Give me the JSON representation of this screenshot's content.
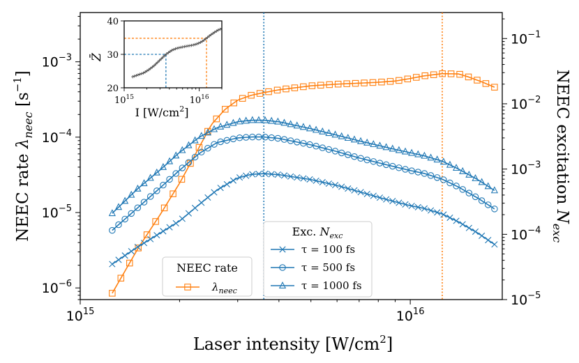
{
  "chart_data": {
    "type": "line",
    "xlabel": "Laser intensity [W/cm²]",
    "xlabel_base": "Laser intensity [W/cm",
    "xlabel_sup": "2",
    "xlabel_end": "]",
    "ylabel_left": "NEEC rate λneec [s⁻¹]",
    "ylabel_left_parts": {
      "pre": "NEEC rate ",
      "sym": "λ",
      "sub": "neec",
      "post": " [s",
      "sup": "−1",
      "end": "]"
    },
    "ylabel_right": "NEEC excitation Nexc",
    "ylabel_right_parts": {
      "pre": "NEEC excitation ",
      "sym": "N",
      "sub": "exc"
    },
    "x_scale": "log",
    "xlim": [
      1000000000000000.0,
      1.9e+16
    ],
    "xticks": [
      {
        "value": 1000000000000000.0,
        "base": "10",
        "exp": "15"
      },
      {
        "value": 1e+16,
        "base": "10",
        "exp": "16"
      }
    ],
    "y_left_scale": "log",
    "y_left_lim": [
      7e-07,
      0.0045
    ],
    "y_left_ticks": [
      {
        "value": 1e-06,
        "base": "10",
        "exp": "−6"
      },
      {
        "value": 1e-05,
        "base": "10",
        "exp": "−5"
      },
      {
        "value": 0.0001,
        "base": "10",
        "exp": "−4"
      },
      {
        "value": 0.001,
        "base": "10",
        "exp": "−3"
      }
    ],
    "y_right_scale": "log",
    "y_right_lim": [
      1e-05,
      0.25
    ],
    "y_right_ticks": [
      {
        "value": 1e-05,
        "base": "10",
        "exp": "−5"
      },
      {
        "value": 0.0001,
        "base": "10",
        "exp": "−4"
      },
      {
        "value": 0.001,
        "base": "10",
        "exp": "−3"
      },
      {
        "value": 0.01,
        "base": "10",
        "exp": "−2"
      },
      {
        "value": 0.1,
        "base": "10",
        "exp": "−1"
      }
    ],
    "vlines": [
      {
        "x": 3600000000000000.0,
        "color": "#1f77b4",
        "style": "dotted"
      },
      {
        "x": 1.25e+16,
        "color": "#ff7f0e",
        "style": "dotted"
      }
    ],
    "series": [
      {
        "name": "λneec",
        "axis": "left",
        "color": "#ff7f0e",
        "marker": "square",
        "x": [
          1250000000000000.0,
          1500000000000000.0,
          1750000000000000.0,
          2000000000000000.0,
          2250000000000000.0,
          2500000000000000.0,
          2750000000000000.0,
          3000000000000000.0,
          3300000000000000.0,
          3600000000000000.0,
          4000000000000000.0,
          5000000000000000.0,
          6000000000000000.0,
          7000000000000000.0,
          8000000000000000.0,
          9000000000000000.0,
          1e+16,
          1.1e+16,
          1.25e+16,
          1.4e+16,
          1.5e+16,
          1.65e+16,
          1.8e+16
        ],
        "y": [
          8.5e-07,
          3.4e-06,
          9.5e-06,
          2.45e-05,
          6.3e-05,
          0.000148,
          0.000235,
          0.00031,
          0.00036,
          0.00039,
          0.000425,
          0.00048,
          0.000505,
          0.00052,
          0.000535,
          0.000555,
          0.0006,
          0.00065,
          0.000695,
          0.00069,
          0.00063,
          0.00054,
          0.00046
        ]
      },
      {
        "name": "τ = 100 fs",
        "axis": "right",
        "color": "#1f77b4",
        "marker": "x",
        "x": [
          1250000000000000.0,
          1500000000000000.0,
          1750000000000000.0,
          2000000000000000.0,
          2300000000000000.0,
          2600000000000000.0,
          3000000000000000.0,
          3300000000000000.0,
          3600000000000000.0,
          4000000000000000.0,
          5000000000000000.0,
          6000000000000000.0,
          7000000000000000.0,
          8000000000000000.0,
          9000000000000000.0,
          1e+16,
          1.1e+16,
          1.25e+16,
          1.4e+16,
          1.6e+16,
          1.8e+16
        ],
        "y": [
          3.5e-05,
          6.5e-05,
          0.000105,
          0.00016,
          0.00029,
          0.00048,
          0.00073,
          0.00083,
          0.00085,
          0.00082,
          0.00069,
          0.00056,
          0.00045,
          0.00037,
          0.000315,
          0.000275,
          0.00025,
          0.000205,
          0.000155,
          0.000105,
          7e-05
        ]
      },
      {
        "name": "τ = 500 fs",
        "axis": "right",
        "color": "#1f77b4",
        "marker": "circle",
        "x": [
          1250000000000000.0,
          1500000000000000.0,
          1750000000000000.0,
          2000000000000000.0,
          2300000000000000.0,
          2600000000000000.0,
          3000000000000000.0,
          3300000000000000.0,
          3600000000000000.0,
          4000000000000000.0,
          5000000000000000.0,
          6000000000000000.0,
          7000000000000000.0,
          8000000000000000.0,
          9000000000000000.0,
          1e+16,
          1.1e+16,
          1.25e+16,
          1.4e+16,
          1.6e+16,
          1.8e+16
        ],
        "y": [
          0.000115,
          0.00026,
          0.00052,
          0.00096,
          0.00175,
          0.00255,
          0.003,
          0.0031,
          0.0031,
          0.00295,
          0.00235,
          0.00185,
          0.00148,
          0.00125,
          0.00108,
          0.00095,
          0.00086,
          0.0007,
          0.00053,
          0.00036,
          0.000245
        ]
      },
      {
        "name": "τ = 1000 fs",
        "axis": "right",
        "color": "#1f77b4",
        "marker": "triangle",
        "x": [
          1250000000000000.0,
          1500000000000000.0,
          1750000000000000.0,
          2000000000000000.0,
          2300000000000000.0,
          2600000000000000.0,
          3000000000000000.0,
          3300000000000000.0,
          3600000000000000.0,
          4000000000000000.0,
          5000000000000000.0,
          6000000000000000.0,
          7000000000000000.0,
          8000000000000000.0,
          9000000000000000.0,
          1e+16,
          1.1e+16,
          1.25e+16,
          1.4e+16,
          1.6e+16,
          1.8e+16
        ],
        "y": [
          0.00021,
          0.00051,
          0.00098,
          0.0018,
          0.0031,
          0.0043,
          0.0053,
          0.0056,
          0.0056,
          0.0053,
          0.00415,
          0.0033,
          0.0027,
          0.0023,
          0.002,
          0.00178,
          0.0016,
          0.00132,
          0.001,
          0.00069,
          0.00047
        ]
      }
    ],
    "legends": [
      {
        "title": "NEEC rate",
        "entries": [
          {
            "label": "λneec",
            "sym": "λ",
            "sub": "neec",
            "color": "#ff7f0e",
            "marker": "square"
          }
        ]
      },
      {
        "title": "Exc. Nexc",
        "title_parts": {
          "pre": "Exc. ",
          "sym": "N",
          "sub": "exc"
        },
        "entries": [
          {
            "label": "τ = 100 fs",
            "color": "#1f77b4",
            "marker": "x"
          },
          {
            "label": "τ = 500 fs",
            "color": "#1f77b4",
            "marker": "circle"
          },
          {
            "label": "τ = 1000 fs",
            "color": "#1f77b4",
            "marker": "triangle"
          }
        ]
      }
    ],
    "inset": {
      "type": "line",
      "xlabel": "I [W/cm²]",
      "xlabel_parts": {
        "pre": "I [W/cm",
        "sup": "2",
        "end": "]"
      },
      "ylabel": "Z̄",
      "x_scale": "log",
      "xlim": [
        1000000000000000.0,
        2e+16
      ],
      "ylim": [
        20,
        40
      ],
      "xticks": [
        {
          "value": 1000000000000000.0,
          "base": "10",
          "exp": "15"
        },
        {
          "value": 1e+16,
          "base": "10",
          "exp": "16"
        }
      ],
      "yticks": [
        20,
        30,
        40
      ],
      "guides": [
        {
          "x": 3600000000000000.0,
          "y": 30,
          "color": "#1f77b4"
        },
        {
          "x": 1.25e+16,
          "y": 34.8,
          "color": "#ff7f0e"
        }
      ],
      "series": {
        "color": "#555555",
        "marker": "+",
        "x": [
          1300000000000000.0,
          1500000000000000.0,
          1800000000000000.0,
          2100000000000000.0,
          2500000000000000.0,
          3000000000000000.0,
          3600000000000000.0,
          4300000000000000.0,
          5000000000000000.0,
          6000000000000000.0,
          7000000000000000.0,
          8000000000000000.0,
          9000000000000000.0,
          1e+16,
          1.1e+16,
          1.25e+16,
          1.4e+16,
          1.6e+16,
          1.8e+16,
          2e+16
        ],
        "y": [
          23.3,
          23.8,
          24.4,
          25.3,
          26.6,
          28.3,
          30.0,
          31.2,
          31.8,
          32.2,
          32.5,
          32.7,
          33.0,
          33.4,
          33.9,
          34.8,
          35.7,
          36.6,
          37.3,
          37.7
        ]
      }
    }
  }
}
